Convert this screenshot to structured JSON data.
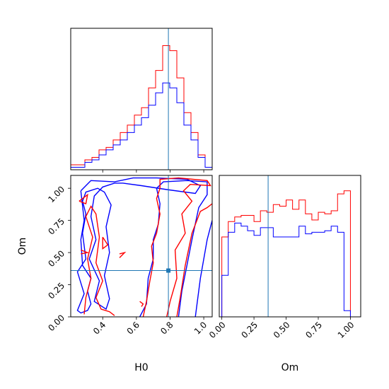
{
  "chart_data": {
    "type": "corner",
    "colors": {
      "series_a": "#ff0000",
      "series_b": "#0000ff",
      "truth": "#1f77b4"
    },
    "parameters": [
      "H0",
      "Om"
    ],
    "truth": {
      "H0": 0.79,
      "Om": 0.36
    },
    "panels": [
      {
        "id": "hist_H0",
        "type": "histogram-step",
        "xlim": [
          0.21,
          1.05
        ],
        "bin_edges": [
          0.21,
          0.252,
          0.294,
          0.336,
          0.378,
          0.42,
          0.462,
          0.504,
          0.546,
          0.588,
          0.63,
          0.672,
          0.714,
          0.756,
          0.798,
          0.84,
          0.882,
          0.924,
          0.966,
          1.008,
          1.05
        ],
        "series": [
          {
            "color_key": "series_a",
            "values": [
              2,
              2,
              4,
              5,
              8,
              9,
              12,
              15,
              18,
              22,
              25,
              33,
              40,
              50,
              48,
              37,
              23,
              15,
              6,
              1
            ]
          },
          {
            "color_key": "series_b",
            "values": [
              1,
              1,
              3,
              4,
              6,
              8,
              10,
              12,
              15,
              18,
              21,
              26,
              31,
              35,
              33,
              27,
              18,
              12,
              5,
              1
            ]
          }
        ],
        "ticks": [
          0.4,
          0.6,
          0.8,
          1.0
        ]
      },
      {
        "id": "hist_Om",
        "type": "histogram-step",
        "xlim": [
          -0.02,
          1.08
        ],
        "xticks": [
          "0.00",
          "0.25",
          "0.50",
          "0.75",
          "1.00"
        ],
        "xtick_values": [
          0,
          0.25,
          0.5,
          0.75,
          1.0
        ],
        "xlabel": "Om",
        "bin_edges": [
          0,
          0.05,
          0.1,
          0.15,
          0.2,
          0.25,
          0.3,
          0.35,
          0.4,
          0.45,
          0.5,
          0.55,
          0.6,
          0.65,
          0.7,
          0.75,
          0.8,
          0.85,
          0.9,
          0.95,
          1.0
        ],
        "series": [
          {
            "color_key": "series_a",
            "values": [
              52,
              62,
              65,
              66,
              66,
              62,
              69,
              68,
              73,
              72,
              76,
              70,
              76,
              67,
              63,
              68,
              67,
              69,
              80,
              82
            ]
          },
          {
            "color_key": "series_b",
            "values": [
              27,
              55,
              61,
              59,
              56,
              53,
              58,
              58,
              52,
              52,
              52,
              52,
              59,
              54,
              55,
              55,
              56,
              59,
              55,
              4
            ]
          }
        ]
      },
      {
        "id": "contour_H0_Om",
        "type": "contour",
        "xlim": [
          0.21,
          1.05
        ],
        "ylim": [
          0.0,
          1.1
        ],
        "xticks": [
          "0.4",
          "0.6",
          "0.8",
          "1.0"
        ],
        "xtick_values": [
          0.4,
          0.6,
          0.8,
          1.0
        ],
        "yticks": [
          "0.00",
          "0.25",
          "0.50",
          "0.75",
          "1.00"
        ],
        "ytick_values": [
          0,
          0.25,
          0.5,
          0.75,
          1.0
        ],
        "xlabel": "H0",
        "ylabel": "Om",
        "truth_point": [
          0.79,
          0.36
        ],
        "series": [
          {
            "color_key": "series_b",
            "contours": [
              [
                [
                  0.27,
                  0.98
                ],
                [
                  0.33,
                  1.06
                ],
                [
                  0.47,
                  1.05
                ],
                [
                  0.58,
                  1.08
                ],
                [
                  0.72,
                  1.08
                ],
                [
                  0.9,
                  1.07
                ],
                [
                  0.98,
                  1.02
                ],
                [
                  0.95,
                  0.96
                ],
                [
                  0.78,
                  0.99
                ],
                [
                  0.63,
                  1.02
                ],
                [
                  0.52,
                  1.04
                ],
                [
                  0.47,
                  1.04
                ],
                [
                  0.4,
                  1.01
                ],
                [
                  0.35,
                  0.94
                ],
                [
                  0.33,
                  0.78
                ],
                [
                  0.36,
                  0.6
                ],
                [
                  0.32,
                  0.45
                ],
                [
                  0.38,
                  0.28
                ],
                [
                  0.35,
                  0.12
                ],
                [
                  0.42,
                  0.06
                ],
                [
                  0.44,
                  0.14
                ],
                [
                  0.41,
                  0.32
                ],
                [
                  0.44,
                  0.5
                ],
                [
                  0.42,
                  0.7
                ],
                [
                  0.45,
                  0.87
                ],
                [
                  0.41,
                  0.97
                ],
                [
                  0.37,
                  1.0
                ],
                [
                  0.3,
                  0.97
                ],
                [
                  0.28,
                  0.9
                ],
                [
                  0.3,
                  0.8
                ],
                [
                  0.28,
                  0.65
                ],
                [
                  0.3,
                  0.45
                ],
                [
                  0.25,
                  0.35
                ],
                [
                  0.29,
                  0.18
                ],
                [
                  0.25,
                  0.05
                ],
                [
                  0.27,
                  0.03
                ],
                [
                  0.31,
                  0.05
                ],
                [
                  0.33,
                  0.1
                ],
                [
                  0.31,
                  0.2
                ],
                [
                  0.33,
                  0.3
                ],
                [
                  0.28,
                  0.4
                ],
                [
                  0.27,
                  0.6
                ],
                [
                  0.29,
                  0.75
                ],
                [
                  0.27,
                  0.98
                ]
              ],
              [
                [
                  0.62,
                  0.0
                ],
                [
                  0.66,
                  0.1
                ],
                [
                  0.67,
                  0.3
                ],
                [
                  0.7,
                  0.45
                ],
                [
                  0.7,
                  0.6
                ],
                [
                  0.73,
                  0.72
                ],
                [
                  0.74,
                  0.88
                ],
                [
                  0.72,
                  1.0
                ],
                [
                  0.76,
                  1.05
                ],
                [
                  0.9,
                  1.06
                ],
                [
                  1.02,
                  1.05
                ],
                [
                  1.02,
                  0.95
                ],
                [
                  0.97,
                  0.85
                ],
                [
                  0.93,
                  0.6
                ],
                [
                  0.9,
                  0.4
                ],
                [
                  0.87,
                  0.2
                ],
                [
                  0.85,
                  0.0
                ]
              ],
              [
                [
                  0.95,
                  0.0
                ],
                [
                  0.98,
                  0.3
                ],
                [
                  1.02,
                  0.6
                ],
                [
                  1.05,
                  0.75
                ]
              ]
            ]
          },
          {
            "color_key": "series_a",
            "contours": [
              [
                [
                  0.26,
                  0.9
                ],
                [
                  0.31,
                  0.95
                ],
                [
                  0.3,
                  0.88
                ],
                [
                  0.26,
                  0.9
                ]
              ],
              [
                [
                  0.29,
                  0.02
                ],
                [
                  0.3,
                  0.15
                ],
                [
                  0.33,
                  0.3
                ],
                [
                  0.31,
                  0.45
                ],
                [
                  0.34,
                  0.62
                ],
                [
                  0.3,
                  0.78
                ],
                [
                  0.33,
                  0.86
                ],
                [
                  0.36,
                  0.8
                ],
                [
                  0.38,
                  0.62
                ],
                [
                  0.36,
                  0.42
                ],
                [
                  0.4,
                  0.28
                ],
                [
                  0.36,
                  0.15
                ],
                [
                  0.39,
                  0.06
                ],
                [
                  0.44,
                  0.04
                ],
                [
                  0.47,
                  0.01
                ]
              ],
              [
                [
                  0.64,
                  0.0
                ],
                [
                  0.66,
                  0.12
                ],
                [
                  0.68,
                  0.28
                ],
                [
                  0.7,
                  0.42
                ],
                [
                  0.69,
                  0.55
                ],
                [
                  0.72,
                  0.65
                ],
                [
                  0.74,
                  0.8
                ],
                [
                  0.72,
                  0.92
                ],
                [
                  0.74,
                  1.0
                ],
                [
                  0.74,
                  1.07
                ],
                [
                  0.85,
                  1.08
                ],
                [
                  1.02,
                  1.06
                ],
                [
                  1.04,
                  1.02
                ],
                [
                  0.92,
                  1.03
                ],
                [
                  0.88,
                  0.98
                ],
                [
                  0.93,
                  0.9
                ],
                [
                  0.87,
                  0.8
                ],
                [
                  0.89,
                  0.65
                ],
                [
                  0.83,
                  0.52
                ],
                [
                  0.84,
                  0.3
                ],
                [
                  0.8,
                  0.12
                ],
                [
                  0.78,
                  0.0
                ]
              ],
              [
                [
                  0.84,
                  0.0
                ],
                [
                  0.86,
                  0.15
                ],
                [
                  0.89,
                  0.4
                ],
                [
                  0.93,
                  0.65
                ],
                [
                  0.98,
                  0.82
                ],
                [
                  1.02,
                  0.85
                ],
                [
                  1.05,
                  0.88
                ]
              ],
              [
                [
                  0.4,
                  0.62
                ],
                [
                  0.43,
                  0.56
                ],
                [
                  0.4,
                  0.53
                ],
                [
                  0.4,
                  0.62
                ]
              ],
              [
                [
                  0.27,
                  0.52
                ],
                [
                  0.31,
                  0.5
                ],
                [
                  0.27,
                  0.49
                ]
              ],
              [
                [
                  0.5,
                  0.49
                ],
                [
                  0.53,
                  0.5
                ],
                [
                  0.5,
                  0.46
                ]
              ],
              [
                [
                  0.62,
                  0.12
                ],
                [
                  0.64,
                  0.1
                ],
                [
                  0.63,
                  0.08
                ]
              ]
            ]
          }
        ]
      }
    ]
  }
}
